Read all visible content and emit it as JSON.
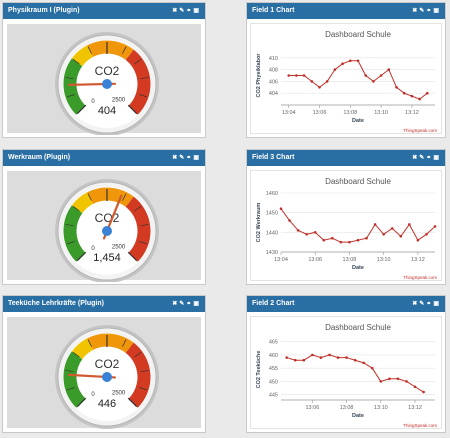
{
  "icons": [
    "close-icon",
    "pencil-icon",
    "link-icon",
    "chat-icon"
  ],
  "colors": {
    "header_bg": "#2a6fa3",
    "gauge_green": "#3a9a2a",
    "gauge_yellow": "#f0c400",
    "gauge_orange": "#f0960a",
    "gauge_red": "#d23a22",
    "line_color": "#c0302a",
    "needle_color": "#d05a30",
    "hub_color": "#3a82d6"
  },
  "gauges": [
    {
      "title": "Physikraum I (Plugin)",
      "label": "CO2",
      "value": 404,
      "value_text": "404",
      "min_label": "0",
      "max_label": "2500",
      "min": 0,
      "max": 2500
    },
    {
      "title": "Werkraum (Plugin)",
      "label": "CO2",
      "value": 1454,
      "value_text": "1,454",
      "min_label": "0",
      "max_label": "2500",
      "min": 0,
      "max": 2500
    },
    {
      "title": "Teeküche Lehrkräfte (Plugin)",
      "label": "CO2",
      "value": 446,
      "value_text": "446",
      "min_label": "0",
      "max_label": "2500",
      "min": 0,
      "max": 2500
    }
  ],
  "charts": [
    {
      "panel_title": "Field 1 Chart",
      "title": "Dashboard Schule",
      "ylabel": "CO2 Physiklabor",
      "xlabel": "Date",
      "credit": "ThingSpeak.com"
    },
    {
      "panel_title": "Field 3 Chart",
      "title": "Dashboard Schule",
      "ylabel": "CO2 Werkraum",
      "xlabel": "Date",
      "credit": "ThingSpeak.com"
    },
    {
      "panel_title": "Field 2 Chart",
      "title": "Dashboard Schule",
      "ylabel": "CO2 Teeküche",
      "xlabel": "Date",
      "credit": "ThingSpeak.com"
    }
  ],
  "chart_data": [
    {
      "type": "line",
      "title": "Dashboard Schule",
      "xlabel": "Date",
      "ylabel": "CO2 Physiklabor",
      "ylim": [
        402,
        412
      ],
      "y_ticks": [
        "404",
        "406",
        "408",
        "410"
      ],
      "y_tick_values": [
        404,
        406,
        408,
        410
      ],
      "xlim": [
        "13:03:30",
        "13:13:30"
      ],
      "x_ticks": [
        "13:04",
        "13:06",
        "13:08",
        "13:10",
        "13:12"
      ],
      "x": [
        "13:04",
        "13:04:30",
        "13:05",
        "13:05:30",
        "13:06",
        "13:06:30",
        "13:07",
        "13:07:30",
        "13:08",
        "13:08:30",
        "13:09",
        "13:09:30",
        "13:10",
        "13:10:30",
        "13:11",
        "13:11:30",
        "13:12",
        "13:12:30",
        "13:13"
      ],
      "values": [
        407,
        407,
        407,
        406,
        405,
        406,
        408,
        409,
        409.5,
        409.5,
        407,
        406,
        407,
        408,
        405,
        404,
        403.5,
        403,
        404
      ]
    },
    {
      "type": "line",
      "title": "Dashboard Schule",
      "xlabel": "Date",
      "ylabel": "CO2 Werkraum",
      "ylim": [
        1430,
        1460
      ],
      "y_ticks": [
        "1430",
        "1440",
        "1450",
        "1460"
      ],
      "y_tick_values": [
        1430,
        1440,
        1450,
        1460
      ],
      "xlim": [
        "13:04",
        "13:13"
      ],
      "x_ticks": [
        "13:04",
        "13:06",
        "13:08",
        "13:10",
        "13:12"
      ],
      "x": [
        "13:04",
        "13:04:30",
        "13:05",
        "13:05:30",
        "13:06",
        "13:06:30",
        "13:07",
        "13:07:30",
        "13:08",
        "13:08:30",
        "13:09",
        "13:09:30",
        "13:10",
        "13:10:30",
        "13:11",
        "13:11:30",
        "13:12",
        "13:12:30",
        "13:13"
      ],
      "values": [
        1452,
        1446,
        1441,
        1439,
        1440,
        1436,
        1437,
        1435,
        1435,
        1436,
        1437,
        1444,
        1439,
        1442,
        1438,
        1444,
        1436,
        1439,
        1443
      ]
    },
    {
      "type": "line",
      "title": "Dashboard Schule",
      "xlabel": "Date",
      "ylabel": "CO2 Teeküche",
      "ylim": [
        443,
        466
      ],
      "y_ticks": [
        "445",
        "450",
        "455",
        "460",
        "465"
      ],
      "y_tick_values": [
        445,
        450,
        455,
        460,
        465
      ],
      "xlim": [
        "13:04:10",
        "13:13:10"
      ],
      "x_ticks": [
        "13:06",
        "13:08",
        "13:10",
        "13:12"
      ],
      "x": [
        "13:04:30",
        "13:05",
        "13:05:30",
        "13:06",
        "13:06:30",
        "13:07",
        "13:07:30",
        "13:08",
        "13:08:30",
        "13:09",
        "13:09:30",
        "13:10",
        "13:10:30",
        "13:11",
        "13:11:30",
        "13:12",
        "13:12:30"
      ],
      "values": [
        459,
        458,
        458,
        460,
        459,
        460,
        459,
        459,
        458,
        457,
        455,
        450,
        451,
        451,
        450,
        448,
        446
      ]
    }
  ]
}
